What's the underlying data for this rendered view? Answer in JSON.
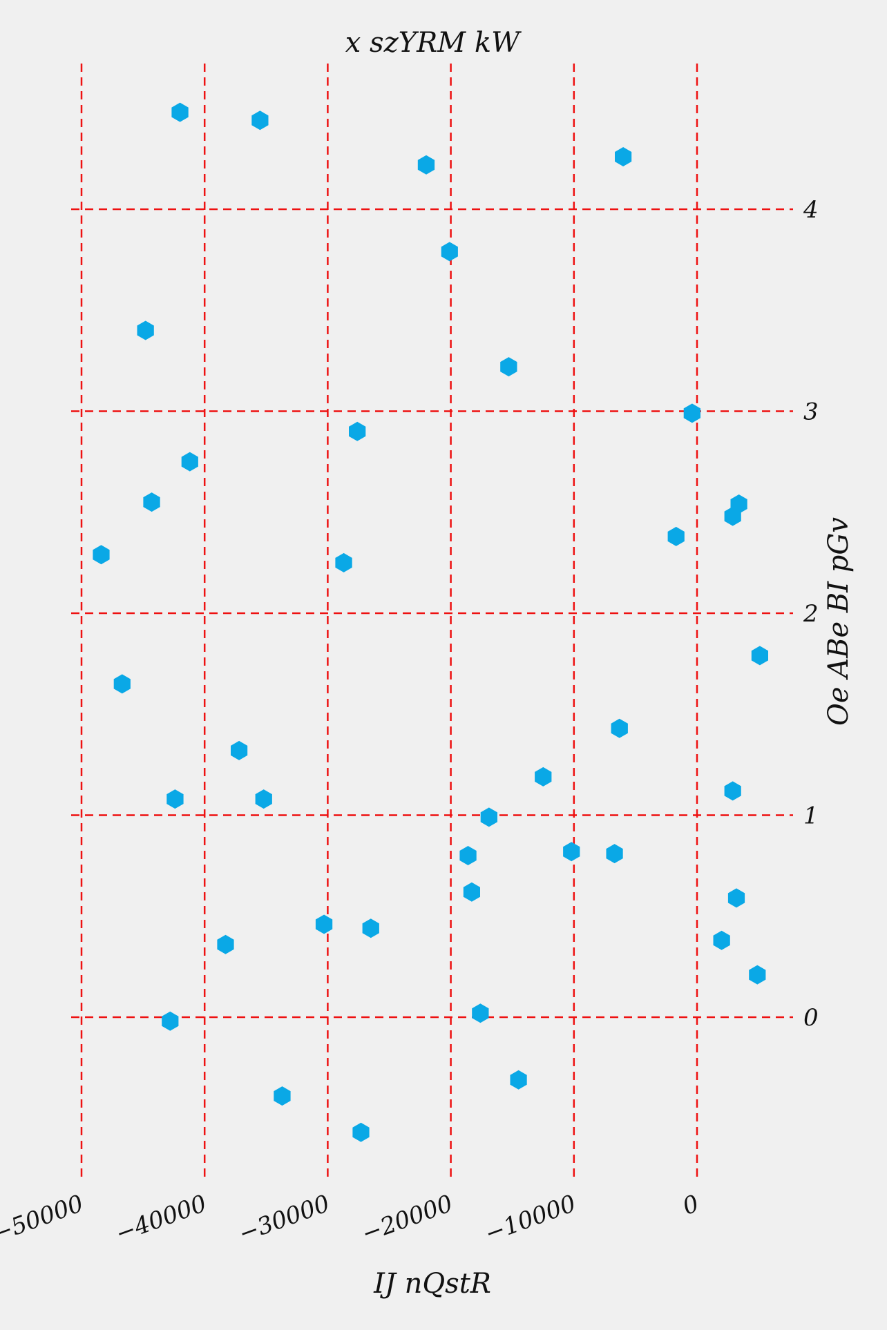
{
  "chart_data": {
    "type": "scatter",
    "title": "x szYRM kW",
    "xlabel": "IJ nQstR",
    "ylabel": "Oe ABe BI pGv",
    "xlim": [
      -50800,
      7800
    ],
    "ylim": [
      -0.8,
      4.75
    ],
    "xticks": [
      -50000,
      -40000,
      -30000,
      -20000,
      -10000,
      0
    ],
    "xtick_labels": [
      "−50000",
      "−40000",
      "−30000",
      "−20000",
      "−10000",
      "0"
    ],
    "yticks": [
      0,
      1,
      2,
      3,
      4
    ],
    "ytick_labels": [
      "0",
      "1",
      "2",
      "3",
      "4"
    ],
    "grid": true,
    "marker": "hexagon",
    "colors": {
      "points": "#0aa8e6",
      "grid": "#ee1111",
      "background": "#f0f0f0"
    },
    "series": [
      {
        "x": [
          -42000,
          -35500,
          -22000,
          -6000,
          -20100,
          -44800,
          -15300,
          -400,
          -27600,
          -41200,
          -44300,
          -48400,
          3400,
          2900,
          -1700,
          -28700,
          5100,
          -46700,
          -6300,
          -12500,
          2900,
          -42400,
          -37200,
          -35200,
          -16900,
          -18600,
          -10200,
          -6700,
          -18300,
          3200,
          2000,
          -30300,
          -38300,
          -26500,
          4900,
          -42800,
          -17600,
          -14500,
          -33700,
          -27300
        ],
        "y": [
          4.48,
          4.44,
          4.22,
          4.26,
          3.79,
          3.4,
          3.22,
          2.99,
          2.9,
          2.75,
          2.55,
          2.29,
          2.54,
          2.48,
          2.38,
          2.25,
          1.79,
          1.65,
          1.43,
          1.19,
          1.12,
          1.08,
          1.32,
          1.08,
          0.99,
          0.8,
          0.82,
          0.81,
          0.62,
          0.59,
          0.38,
          0.46,
          0.36,
          0.44,
          0.21,
          -0.02,
          0.02,
          -0.31,
          -0.39,
          -0.57
        ]
      }
    ]
  }
}
